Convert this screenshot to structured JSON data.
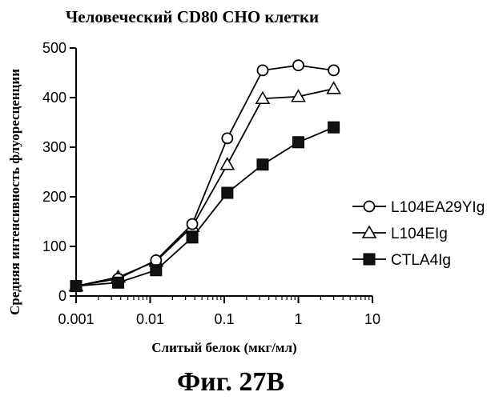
{
  "figure_caption": "Фиг. 27B",
  "chart_data": {
    "type": "line",
    "title": "Человеческий CD80 CHO клетки",
    "xlabel": "Слитый белок (мкг/мл)",
    "ylabel": "Средняя интенсивность флуоресценции",
    "x_scale": "log",
    "xlim": [
      0.001,
      10
    ],
    "ylim": [
      0,
      500
    ],
    "x_ticks": [
      "0.001",
      "0.01",
      "0.1",
      "1",
      "10"
    ],
    "y_ticks": [
      "0",
      "100",
      "200",
      "300",
      "400",
      "500"
    ],
    "grid": false,
    "legend_position": "right",
    "series": [
      {
        "name": "L104EA29YIg",
        "marker": "open-circle",
        "x": [
          0.001,
          0.0037,
          0.012,
          0.037,
          0.11,
          0.33,
          1,
          3
        ],
        "y": [
          20,
          35,
          72,
          145,
          318,
          455,
          465,
          455
        ]
      },
      {
        "name": "L104EIg",
        "marker": "open-triangle",
        "x": [
          0.001,
          0.0037,
          0.012,
          0.037,
          0.11,
          0.33,
          1,
          3
        ],
        "y": [
          20,
          38,
          70,
          140,
          265,
          398,
          402,
          418
        ]
      },
      {
        "name": "CTLA4Ig",
        "marker": "filled-square",
        "x": [
          0.001,
          0.0037,
          0.012,
          0.037,
          0.11,
          0.33,
          1,
          3
        ],
        "y": [
          20,
          27,
          52,
          118,
          208,
          265,
          310,
          340
        ]
      }
    ]
  }
}
